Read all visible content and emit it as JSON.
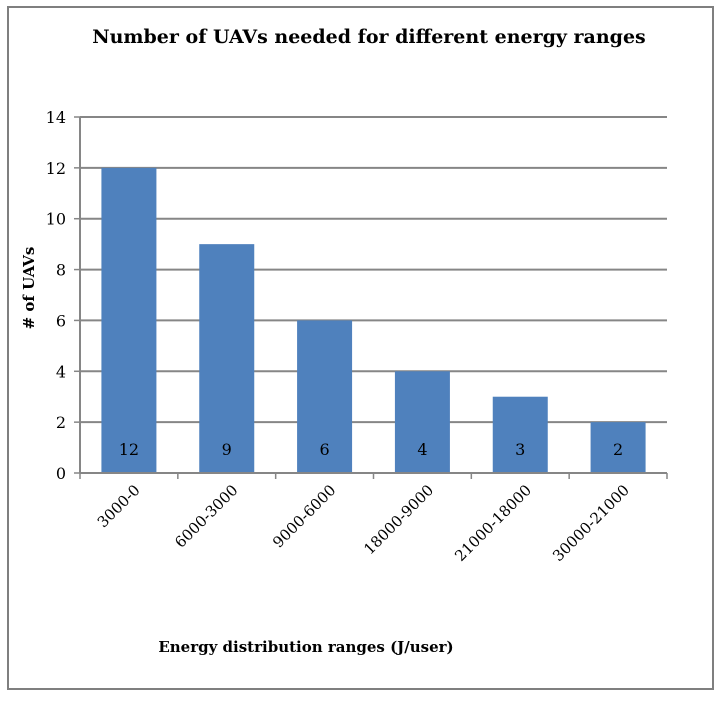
{
  "chart_data": {
    "type": "bar",
    "title": "Number of UAVs needed for different energy ranges",
    "xlabel": "Energy distribution ranges (J/user)",
    "ylabel": "# of UAVs",
    "categories": [
      "3000-0",
      "6000-3000",
      "9000-6000",
      "18000-9000",
      "21000-18000",
      "30000-21000"
    ],
    "values": [
      12,
      9,
      6,
      4,
      3,
      2
    ],
    "data_labels": [
      "12",
      "9",
      "6",
      "4",
      "3",
      "2"
    ],
    "ylim": [
      0,
      14
    ],
    "yticks": [
      0,
      2,
      4,
      6,
      8,
      10,
      12,
      14
    ],
    "grid": true,
    "legend": "none",
    "colors": {
      "bar": "#4f81bd",
      "grid": "#868686",
      "axis": "#868686"
    }
  }
}
